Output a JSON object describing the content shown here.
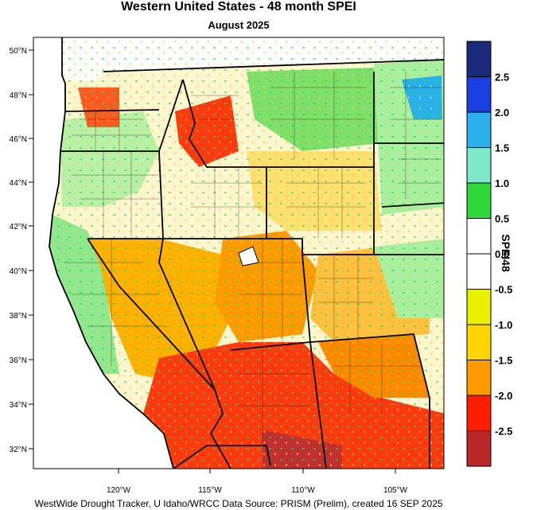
{
  "title": "Western United States - 48 month SPEI",
  "subtitle": "August 2025",
  "footer": "WestWide Drought Tracker, U Idaho/WRCC Data Source: PRISM (Prelim), created 16 SEP 2025",
  "colorbar": {
    "title": "SPEI48",
    "labels": [
      "2.5",
      "2.0",
      "1.5",
      "1.0",
      "0.5",
      "0.0",
      "-0.5",
      "-1.0",
      "-1.5",
      "-2.0",
      "-2.5"
    ],
    "colors": [
      "#1b2a7a",
      "#1a3fe0",
      "#2ab0ea",
      "#7ee8c8",
      "#2ed838",
      "#ffffff",
      "#ffffff",
      "#e8f000",
      "#ffd400",
      "#ff9a00",
      "#ff1e00",
      "#b82828"
    ]
  },
  "axes": {
    "lat_labels": [
      "50°N",
      "48°N",
      "46°N",
      "44°N",
      "42°N",
      "40°N",
      "38°N",
      "36°N",
      "34°N",
      "32°N"
    ],
    "lon_labels": [
      "120°W",
      "115°W",
      "110°W",
      "105°W"
    ]
  }
}
